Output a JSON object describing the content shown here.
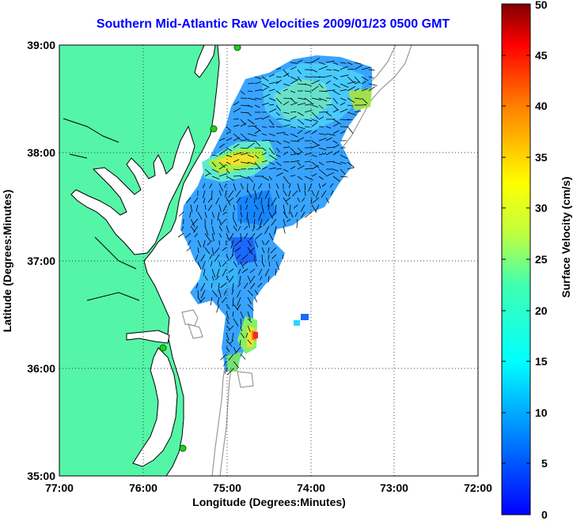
{
  "title": "Southern Mid-Atlantic Raw Velocities 2009/01/23 0500 GMT",
  "axes": {
    "xlabel": "Longitude (Degrees:Minutes)",
    "ylabel": "Latitude (Degrees:Minutes)",
    "x_ticks": [
      "77:00",
      "76:00",
      "75:00",
      "74:00",
      "73:00",
      "72:00"
    ],
    "y_ticks": [
      "39:00",
      "38:00",
      "37:00",
      "36:00",
      "35:00"
    ],
    "xlim": [
      -77,
      -72
    ],
    "ylim": [
      35,
      39
    ],
    "grid": "dotted"
  },
  "colorbar": {
    "label": "Surface Velocity (cm/s)",
    "ticks": [
      "50",
      "45",
      "40",
      "35",
      "30",
      "25",
      "20",
      "15",
      "10",
      "5",
      "0"
    ],
    "range": [
      0,
      50
    ],
    "colormap": "jet"
  },
  "colors": {
    "title": "#0000ff",
    "land": "#55f5a8",
    "coast": "#000000",
    "bathymetry": "#999999",
    "site_marker": "#22cc22",
    "vectors": "#000000"
  },
  "chart_data": {
    "type": "heatmap",
    "title": "Southern Mid-Atlantic Raw Velocities 2009/01/23 0500 GMT",
    "xlabel": "Longitude (Degrees:Minutes)",
    "ylabel": "Latitude (Degrees:Minutes)",
    "xlim": [
      -77,
      -72
    ],
    "ylim": [
      35,
      39
    ],
    "colorbar_label": "Surface Velocity (cm/s)",
    "colorbar_range": [
      0,
      50
    ],
    "site_markers": [
      {
        "lon": -74.93,
        "lat": 39.0
      },
      {
        "lon": -75.12,
        "lat": 38.22
      },
      {
        "lon": -75.73,
        "lat": 36.19
      },
      {
        "lon": -75.52,
        "lat": 35.25
      }
    ],
    "velocity_regions": [
      {
        "lon": -74.8,
        "lat": 37.95,
        "speed_cm_s": 27
      },
      {
        "lon": -74.4,
        "lat": 38.35,
        "speed_cm_s": 14
      },
      {
        "lon": -73.9,
        "lat": 38.55,
        "speed_cm_s": 13
      },
      {
        "lon": -74.6,
        "lat": 37.5,
        "speed_cm_s": 6
      },
      {
        "lon": -75.1,
        "lat": 37.3,
        "speed_cm_s": 9
      },
      {
        "lon": -74.3,
        "lat": 37.2,
        "speed_cm_s": 8
      },
      {
        "lon": -74.7,
        "lat": 36.55,
        "speed_cm_s": 11
      },
      {
        "lon": -74.75,
        "lat": 36.3,
        "speed_cm_s": 24
      },
      {
        "lon": -74.65,
        "lat": 36.3,
        "speed_cm_s": 40
      },
      {
        "lon": -73.45,
        "lat": 38.55,
        "speed_cm_s": 20
      },
      {
        "lon": -74.08,
        "lat": 36.48,
        "speed_cm_s": 4
      }
    ]
  }
}
